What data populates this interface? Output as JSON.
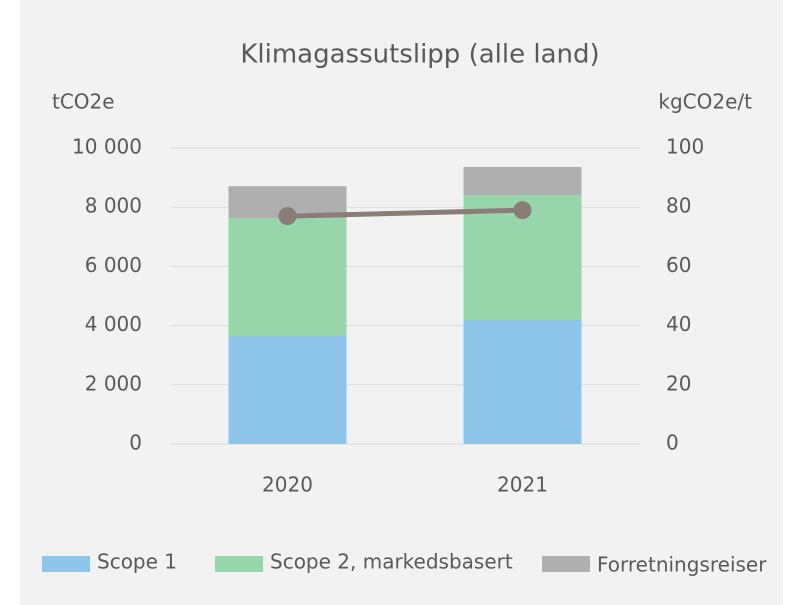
{
  "chart_data": {
    "type": "bar",
    "title": "Klimagassutslipp (alle land)",
    "ylabel": "tCO2e",
    "y2label": "kgCO2e/t",
    "categories": [
      "2020",
      "2021"
    ],
    "series": [
      {
        "name": "Scope 1",
        "color": "#8ec6e9",
        "values": [
          3650,
          4190
        ]
      },
      {
        "name": "Scope 2, markedsbasert",
        "color": "#97d6ab",
        "values": [
          3980,
          4220
        ]
      },
      {
        "name": "Forretningsreiser",
        "color": "#afafaf",
        "values": [
          1080,
          950
        ]
      },
      {
        "name": null,
        "type": "line",
        "axis": "y2",
        "color": "#8a7c77",
        "values": [
          77,
          79
        ]
      }
    ],
    "ylim": [
      0,
      10000
    ],
    "yticks": [
      {
        "value": 0,
        "label": "0"
      },
      {
        "value": 2000,
        "label": "2 000"
      },
      {
        "value": 4000,
        "label": "4 000"
      },
      {
        "value": 6000,
        "label": "6 000"
      },
      {
        "value": 8000,
        "label": "8 000"
      },
      {
        "value": 10000,
        "label": "10 000"
      }
    ],
    "y2lim": [
      0,
      100
    ],
    "y2ticks": [
      0,
      20,
      40,
      60,
      80,
      100
    ],
    "grid": true,
    "legend": "bottom"
  }
}
